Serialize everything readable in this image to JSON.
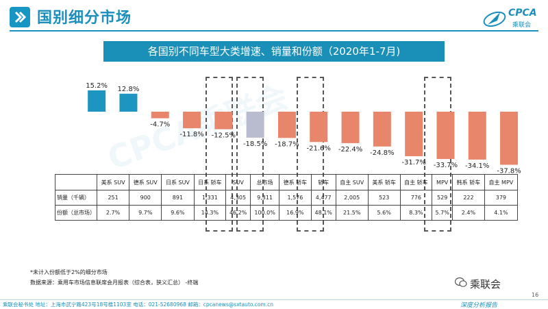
{
  "header": {
    "title": "国别细分市场",
    "logo_text": "CPCA",
    "logo_sub": "乘联会"
  },
  "banner": {
    "title": "各国别不同车型大类增速、销量和份额（2020年1-7月)"
  },
  "chart_data": {
    "type": "bar",
    "title": "各国别不同车型大类增速、销量和份额（2020年1-7月)",
    "categories": [
      "美系 SUV",
      "德系 SUV",
      "日系 SUV",
      "日系 轿车",
      "SUV",
      "总市场",
      "德系 轿车",
      "轿车",
      "自主 SUV",
      "美系 轿车",
      "自主 轿车",
      "MPV",
      "韩系 轿车",
      "自主 MPV"
    ],
    "values": [
      15.2,
      12.8,
      -4.7,
      -11.8,
      -12.5,
      -18.5,
      -18.7,
      -21.6,
      -22.4,
      -24.8,
      -31.7,
      -33.7,
      -34.1,
      -37.8
    ],
    "value_labels": [
      "15.2%",
      "12.8%",
      "-4.7%",
      "-11.8%",
      "-12.5%",
      "-18.5%",
      "-18.7%",
      "-21.6%",
      "-22.4%",
      "-24.8%",
      "-31.7%",
      "-33.7%",
      "-34.1%",
      "-37.8%"
    ],
    "highlighted": [
      "SUV",
      "总市场",
      "轿车",
      "MPV"
    ],
    "colors": {
      "positive": "#1e95c1",
      "negative": "#e8866b",
      "total": "#b9bccf"
    },
    "ylim": [
      -40,
      20
    ],
    "grid": false,
    "legend": "none"
  },
  "table": {
    "headers": [
      "美系 SUV",
      "德系 SUV",
      "日系 SUV",
      "日系 轿车",
      "SUV",
      "总市场",
      "德系 轿车",
      "轿车",
      "自主 SUV",
      "美系 轿车",
      "自主 轿车",
      "MPV",
      "韩系 轿车",
      "自主 MPV"
    ],
    "rows": [
      {
        "label": "销量（千辆）",
        "values": [
          "251",
          "900",
          "891",
          "1,331",
          "4,305",
          "9,311",
          "1,576",
          "4,477",
          "2,005",
          "523",
          "776",
          "529",
          "222",
          "379"
        ]
      },
      {
        "label": "份额（总市场）",
        "values": [
          "2.7%",
          "9.7%",
          "9.6%",
          "14.3%",
          "46.2%",
          "100.0%",
          "16.9%",
          "48.1%",
          "21.5%",
          "5.6%",
          "8.3%",
          "5.7%",
          "2.4%",
          "4.1%"
        ]
      }
    ]
  },
  "notes": {
    "line1": "*未计入份额低于2%的细分市场",
    "line2": "数据来源：乘用车市场信息联席会月报表（综合表，狭义汇总）   -终端"
  },
  "wechat": "乘联会",
  "page_number": "16",
  "footer": {
    "left": "乘联会秘书处   地址：上海市武宁路423号18号楼1103室    电话：021-52680968    邮箱：cpcanews@sxtauto.com.cn",
    "right": "深度分析报告"
  }
}
